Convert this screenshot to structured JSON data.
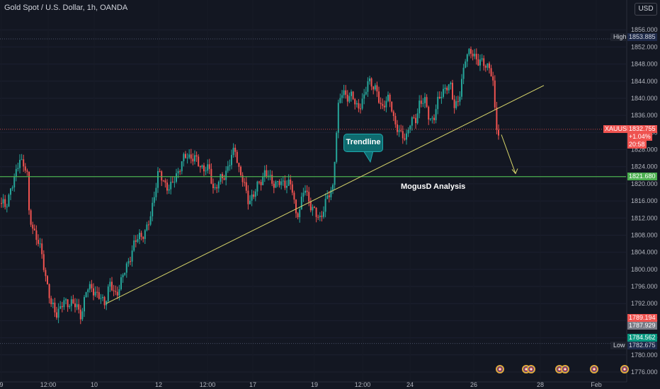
{
  "header": {
    "title": "Gold Spot / U.S. Dollar, 1h, OANDA",
    "currency": "USD"
  },
  "chart_data": {
    "type": "candlestick",
    "symbol": "XAUUSD",
    "ylim": [
      1775.5,
      1860.5
    ],
    "x_tick_labels": [
      "9",
      "12:00",
      "10",
      "12",
      "12:00",
      "17",
      "19",
      "12:00",
      "24",
      "26",
      "28",
      "Feb"
    ],
    "y_tick_labels": [
      "1856.000",
      "1852.000",
      "1848.000",
      "1844.000",
      "1840.000",
      "1836.000",
      "1832.000",
      "1828.000",
      "1824.000",
      "1820.000",
      "1816.000",
      "1812.000",
      "1808.000",
      "1804.000",
      "1800.000",
      "1796.000",
      "1792.000",
      "1788.000",
      "1784.000",
      "1780.000",
      "1776.000"
    ],
    "y_tick_values": [
      1856,
      1852,
      1848,
      1844,
      1840,
      1836,
      1832,
      1828,
      1824,
      1820,
      1816,
      1812,
      1808,
      1804,
      1800,
      1796,
      1792,
      1788,
      1784,
      1780,
      1776
    ],
    "price_path": [
      [
        0,
        1815.5
      ],
      [
        8,
        1814.5
      ],
      [
        15,
        1819
      ],
      [
        22,
        1821.5
      ],
      [
        28,
        1826.5
      ],
      [
        34,
        1824
      ],
      [
        38,
        1823
      ],
      [
        41,
        1813
      ],
      [
        50,
        1808
      ],
      [
        60,
        1803
      ],
      [
        66,
        1797
      ],
      [
        72,
        1791.5
      ],
      [
        80,
        1790
      ],
      [
        90,
        1792
      ],
      [
        100,
        1792.5
      ],
      [
        108,
        1791
      ],
      [
        115,
        1789.5
      ],
      [
        122,
        1795
      ],
      [
        130,
        1796
      ],
      [
        138,
        1793.5
      ],
      [
        148,
        1792.5
      ],
      [
        155,
        1796.5
      ],
      [
        162,
        1794
      ],
      [
        170,
        1796.5
      ],
      [
        178,
        1800.5
      ],
      [
        188,
        1805
      ],
      [
        196,
        1808
      ],
      [
        206,
        1808.5
      ],
      [
        212,
        1812
      ],
      [
        218,
        1818
      ],
      [
        224,
        1822.5
      ],
      [
        232,
        1820.5
      ],
      [
        240,
        1818.5
      ],
      [
        248,
        1822
      ],
      [
        256,
        1824.5
      ],
      [
        264,
        1827
      ],
      [
        272,
        1826
      ],
      [
        280,
        1825
      ],
      [
        288,
        1823.5
      ],
      [
        296,
        1823
      ],
      [
        302,
        1818.5
      ],
      [
        310,
        1820.5
      ],
      [
        318,
        1822.5
      ],
      [
        326,
        1825.5
      ],
      [
        332,
        1828.5
      ],
      [
        338,
        1823
      ],
      [
        344,
        1820
      ],
      [
        350,
        1816.5
      ],
      [
        358,
        1817
      ],
      [
        366,
        1820.5
      ],
      [
        374,
        1822.5
      ],
      [
        382,
        1821
      ],
      [
        390,
        1820
      ],
      [
        398,
        1820
      ],
      [
        406,
        1820.5
      ],
      [
        412,
        1819
      ],
      [
        418,
        1813
      ],
      [
        424,
        1814.5
      ],
      [
        430,
        1819
      ],
      [
        438,
        1815.5
      ],
      [
        446,
        1812.5
      ],
      [
        452,
        1812
      ],
      [
        458,
        1815
      ],
      [
        464,
        1817
      ],
      [
        470,
        1819.5
      ],
      [
        474,
        1830
      ],
      [
        478,
        1838
      ],
      [
        484,
        1842
      ],
      [
        490,
        1840.5
      ],
      [
        498,
        1840
      ],
      [
        506,
        1838
      ],
      [
        514,
        1839.5
      ],
      [
        520,
        1845
      ],
      [
        526,
        1843
      ],
      [
        532,
        1841
      ],
      [
        540,
        1838
      ],
      [
        546,
        1839.5
      ],
      [
        552,
        1839
      ],
      [
        558,
        1834
      ],
      [
        566,
        1831
      ],
      [
        574,
        1831.5
      ],
      [
        580,
        1834.5
      ],
      [
        586,
        1834.5
      ],
      [
        592,
        1839
      ],
      [
        600,
        1839
      ],
      [
        606,
        1836
      ],
      [
        612,
        1834.5
      ],
      [
        618,
        1839
      ],
      [
        624,
        1842
      ],
      [
        630,
        1842
      ],
      [
        636,
        1843
      ],
      [
        642,
        1838.5
      ],
      [
        648,
        1839
      ],
      [
        654,
        1846
      ],
      [
        658,
        1851
      ],
      [
        664,
        1850.5
      ],
      [
        670,
        1849.5
      ],
      [
        678,
        1849
      ],
      [
        686,
        1847
      ],
      [
        692,
        1848
      ],
      [
        696,
        1844
      ],
      [
        700,
        1834
      ],
      [
        704,
        1831
      ],
      [
        706,
        1832.755
      ]
    ],
    "trendline": {
      "from": {
        "bar": 150,
        "price": 1792
      },
      "to": {
        "bar": 768,
        "price": 1843
      }
    },
    "projection_arrow": {
      "from": {
        "bar": 708,
        "price": 1831.5
      },
      "to": {
        "bar": 728,
        "price": 1822.4
      }
    },
    "support_level": 1821.68,
    "session_high": 1853.885,
    "session_low": 1782.675,
    "current_price": 1832.755,
    "price_labels": {
      "high_tag": "High",
      "high_value": "1853.885",
      "symbol_tag": "XAUUSD",
      "current_value": "1832.755",
      "change_pct": "+1.04%",
      "countdown": "20:58",
      "support_value": "1821.680",
      "red_value": "1789.194",
      "gray_value": "1787.929",
      "teal_value": "1784.562",
      "low_tag": "Low",
      "low_value": "1782.675"
    },
    "annotations": {
      "callout": "Trendline",
      "analysis_text": "MogusD Analysis"
    },
    "colors": {
      "background": "#131722",
      "bull": "#26a69a",
      "bear": "#ef5350",
      "trendline": "#d8d66a",
      "support": "#4caf50",
      "current_line": "#ef5350",
      "callout": "#0e6b6f"
    }
  }
}
